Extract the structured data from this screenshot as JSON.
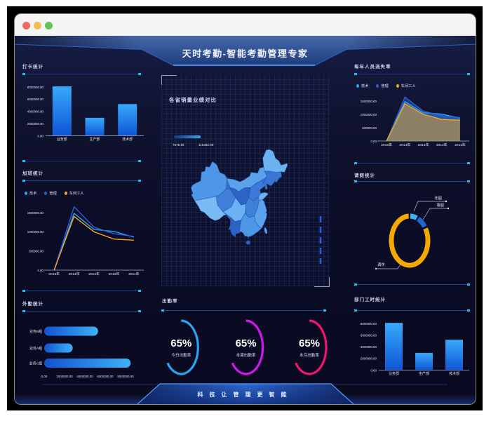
{
  "window": {
    "controls": [
      "close",
      "minimize",
      "zoom"
    ]
  },
  "header": {
    "title": "天时考勤-智能考勤管理专家"
  },
  "footer": {
    "slogan": "科技让管理更智能"
  },
  "colors": {
    "accent_cyan": "#17c3f5",
    "series_tech": "#2ba2f1",
    "series_mgmt": "#2b5fd4",
    "series_worker": "#f6a622",
    "gauge_today": "#2aa4f0",
    "gauge_week": "#d018ee",
    "gauge_month": "#f2156f",
    "bar_gradient_top": "#38a9f9",
    "bar_gradient_bottom": "#0e55d6"
  },
  "chart_data": [
    {
      "id": "daka",
      "type": "bar",
      "title": "打卡统计",
      "categories": [
        "业务部",
        "生产部",
        "技术部"
      ],
      "values": [
        8100000,
        2950000,
        5200000
      ],
      "yticks": [
        0,
        2000000,
        4000000,
        6000000,
        8000000
      ],
      "ylim": [
        0,
        8000000
      ],
      "grid": false,
      "legend_position": "none"
    },
    {
      "id": "jiaban",
      "type": "line",
      "title": "加班统计",
      "categories": [
        "2015年",
        "2014年",
        "2013年",
        "2012年",
        "2011年"
      ],
      "series": [
        {
          "name": "技术",
          "color": "#2ba2f1",
          "values": [
            0,
            1480000,
            1060000,
            1010000,
            860000
          ]
        },
        {
          "name": "管理",
          "color": "#2b5fd4",
          "values": [
            0,
            1650000,
            1120000,
            950000,
            880000
          ]
        },
        {
          "name": "车间工人",
          "color": "#f6a622",
          "values": [
            0,
            1400000,
            1000000,
            810000,
            780000
          ]
        }
      ],
      "yticks": [
        0,
        500000,
        1000000,
        1500000
      ],
      "ylim": [
        0,
        1500000
      ],
      "grid": false,
      "legend_position": "top-left"
    },
    {
      "id": "waiqin",
      "type": "bar",
      "orientation": "horizontal",
      "title": "外勤统计",
      "categories": [
        "业务B组",
        "业务A组",
        "业务C组"
      ],
      "values": [
        5300000,
        2800000,
        8500000
      ],
      "xticks": [
        0,
        2000000,
        4000000,
        6000000,
        8000000
      ],
      "xlim": [
        0,
        8000000
      ],
      "grid": false,
      "legend_position": "none"
    },
    {
      "id": "map",
      "type": "heatmap",
      "title": "各省销量业绩对比",
      "legend_min": "7675.92",
      "legend_max": "115332.89"
    },
    {
      "id": "chuqin",
      "type": "gauges",
      "title": "出勤率",
      "items": [
        {
          "label": "今日出勤率",
          "percent": 65,
          "color": "#2aa4f0"
        },
        {
          "label": "本周出勤率",
          "percent": 65,
          "color": "#d018ee"
        },
        {
          "label": "本月出勤率",
          "percent": 65,
          "color": "#f2156f"
        }
      ]
    },
    {
      "id": "liushi",
      "type": "area",
      "title": "每年人员流失率",
      "categories": [
        "2015年",
        "2014年",
        "2013年",
        "2012年",
        "2011年"
      ],
      "series": [
        {
          "name": "技术",
          "color": "#2ba2f1",
          "values": [
            0,
            1480000,
            1060000,
            1010000,
            860000
          ]
        },
        {
          "name": "管理",
          "color": "#2b5fd4",
          "values": [
            0,
            1650000,
            1120000,
            950000,
            880000
          ]
        },
        {
          "name": "车间工人",
          "color": "#f6a622",
          "values": [
            0,
            1400000,
            1000000,
            810000,
            780000
          ]
        }
      ],
      "yticks": [
        0,
        500000,
        1000000,
        1500000
      ],
      "ylim": [
        0,
        1500000
      ],
      "grid": false,
      "legend_position": "top-left"
    },
    {
      "id": "qingjia",
      "type": "pie",
      "title": "请假统计",
      "slices": [
        {
          "name": "年假",
          "value": 6,
          "color": "#36b3f5"
        },
        {
          "name": "事假",
          "value": 8,
          "color": "#1e68d6"
        },
        {
          "name": "调休",
          "value": 86,
          "color": "#f6a700"
        }
      ]
    },
    {
      "id": "bumen",
      "type": "bar",
      "title": "部门工时统计",
      "categories": [
        "业务部",
        "生产部",
        "技术部"
      ],
      "values": [
        8100000,
        2950000,
        5200000
      ],
      "yticks": [
        0,
        2000000,
        4000000,
        6000000,
        8000000
      ],
      "ylim": [
        0,
        8000000
      ],
      "grid": false,
      "legend_position": "none"
    }
  ]
}
